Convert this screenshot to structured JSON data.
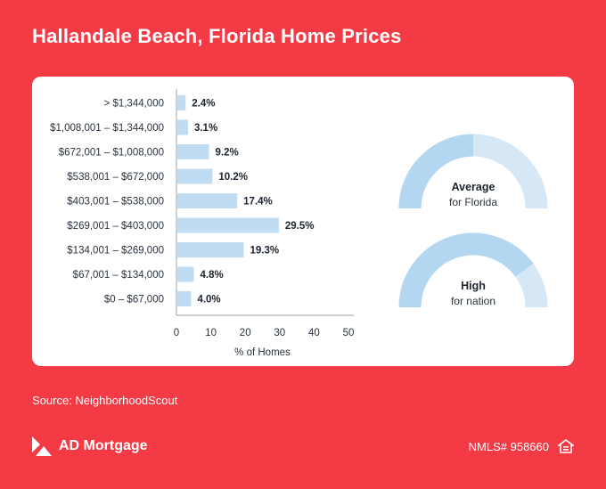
{
  "title": "Hallandale Beach, Florida Home Prices",
  "source": "Source: NeighborhoodScout",
  "brand": {
    "name": "AD Mortgage"
  },
  "nmls": "NMLS# 958660",
  "gauges": [
    {
      "title": "Average",
      "subtitle": "for Florida",
      "level": 0.5,
      "color_fill": "#b3d6f1",
      "color_rest": "#d6e8f6"
    },
    {
      "title": "High",
      "subtitle": "for nation",
      "level": 0.8,
      "color_fill": "#b3d6f1",
      "color_rest": "#d6e8f6"
    }
  ],
  "chart_data": {
    "type": "bar",
    "orientation": "horizontal",
    "categories": [
      "> $1,344,000",
      "$1,008,001 – $1,344,000",
      "$672,001 – $1,008,000",
      "$538,001 – $672,000",
      "$403,001 – $538,000",
      "$269,001 – $403,000",
      "$134,001 – $269,000",
      "$67,001 – $134,000",
      "$0 – $67,000"
    ],
    "values": [
      2.4,
      3.1,
      9.2,
      10.2,
      17.4,
      29.5,
      19.3,
      4.8,
      4.0
    ],
    "value_labels": [
      "2.4%",
      "3.1%",
      "9.2%",
      "10.2%",
      "17.4%",
      "29.5%",
      "19.3%",
      "4.8%",
      "4.0%"
    ],
    "xlabel": "% of Homes",
    "xticks": [
      0,
      10,
      20,
      30,
      40,
      50
    ],
    "xlim": [
      0,
      50
    ],
    "bar_color": "#bfdcf3",
    "grid": false
  }
}
